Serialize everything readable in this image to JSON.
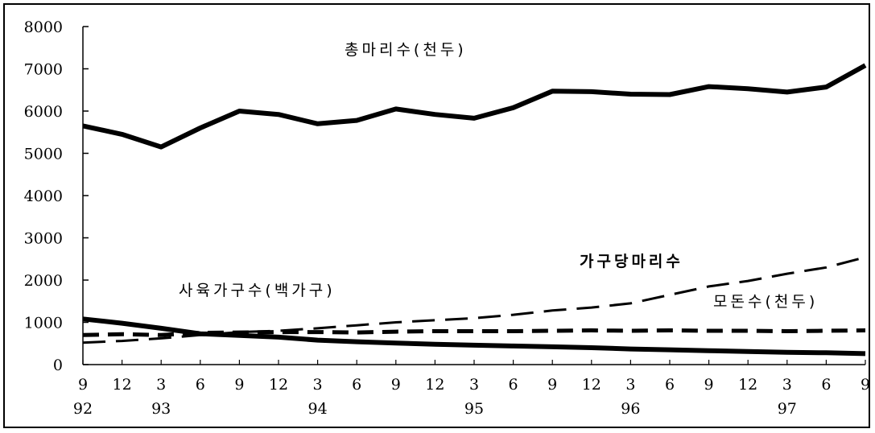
{
  "chart_data": {
    "type": "line",
    "title": "",
    "xlabel": "",
    "ylabel": "",
    "ylim": [
      0,
      8000
    ],
    "y_ticks": [
      "0",
      "1000",
      "2000",
      "3000",
      "4000",
      "5000",
      "6000",
      "7000",
      "8000"
    ],
    "x_ticks_month": [
      "9",
      "12",
      "3",
      "6",
      "9",
      "12",
      "3",
      "6",
      "9",
      "12",
      "3",
      "6",
      "9",
      "12",
      "3",
      "6",
      "9",
      "12",
      "3",
      "6",
      "9"
    ],
    "x_ticks_year": [
      {
        "label": "92",
        "index": 0
      },
      {
        "label": "93",
        "index": 2
      },
      {
        "label": "94",
        "index": 6
      },
      {
        "label": "95",
        "index": 10
      },
      {
        "label": "96",
        "index": 14
      },
      {
        "label": "97",
        "index": 18
      }
    ],
    "grid": false,
    "series": [
      {
        "name": "총마리수(천두)",
        "style": "thick-solid",
        "values": [
          5650,
          5450,
          5150,
          5600,
          6000,
          5920,
          5700,
          5780,
          6050,
          5920,
          5830,
          6080,
          6470,
          6460,
          6400,
          6390,
          6580,
          6530,
          6450,
          6570,
          7080
        ]
      },
      {
        "name": "사육가구수(백가구)",
        "style": "thick-solid",
        "values": [
          1080,
          980,
          860,
          730,
          690,
          650,
          580,
          540,
          510,
          480,
          460,
          440,
          420,
          400,
          370,
          350,
          330,
          310,
          290,
          280,
          260
        ]
      },
      {
        "name": "가구당마리수",
        "style": "long-dash",
        "values": [
          520,
          560,
          620,
          700,
          770,
          800,
          860,
          930,
          1000,
          1050,
          1100,
          1180,
          1280,
          1350,
          1450,
          1650,
          1850,
          1980,
          2150,
          2300,
          2540
        ]
      },
      {
        "name": "모돈수(천두)",
        "style": "short-dash",
        "values": [
          700,
          720,
          700,
          750,
          760,
          770,
          770,
          760,
          780,
          790,
          790,
          790,
          800,
          810,
          800,
          810,
          800,
          800,
          790,
          800,
          810
        ]
      }
    ]
  },
  "colors": {
    "line": "#000000",
    "background": "#ffffff"
  }
}
